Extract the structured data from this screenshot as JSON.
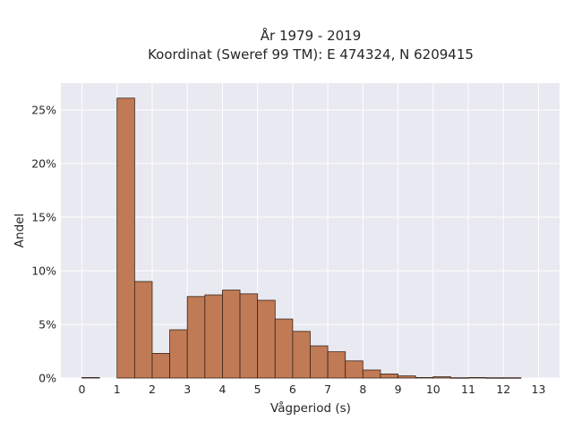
{
  "chart_data": {
    "type": "bar",
    "title": "År 1979 - 2019",
    "subtitle": "Koordinat (Sweref 99 TM): E 474324, N 6209415",
    "xlabel": "Vågperiod (s)",
    "ylabel": "Andel",
    "bin_width": 0.5,
    "bins": [
      {
        "start": 0.0,
        "end": 0.5,
        "value": 0.05
      },
      {
        "start": 1.0,
        "end": 1.5,
        "value": 26.1
      },
      {
        "start": 1.5,
        "end": 2.0,
        "value": 9.0
      },
      {
        "start": 2.0,
        "end": 2.5,
        "value": 2.3
      },
      {
        "start": 2.5,
        "end": 3.0,
        "value": 4.5
      },
      {
        "start": 3.0,
        "end": 3.5,
        "value": 7.6
      },
      {
        "start": 3.5,
        "end": 4.0,
        "value": 7.75
      },
      {
        "start": 4.0,
        "end": 4.5,
        "value": 8.2
      },
      {
        "start": 4.5,
        "end": 5.0,
        "value": 7.85
      },
      {
        "start": 5.0,
        "end": 5.5,
        "value": 7.25
      },
      {
        "start": 5.5,
        "end": 6.0,
        "value": 5.5
      },
      {
        "start": 6.0,
        "end": 6.5,
        "value": 4.35
      },
      {
        "start": 6.5,
        "end": 7.0,
        "value": 3.0
      },
      {
        "start": 7.0,
        "end": 7.5,
        "value": 2.45
      },
      {
        "start": 7.5,
        "end": 8.0,
        "value": 1.6
      },
      {
        "start": 8.0,
        "end": 8.5,
        "value": 0.75
      },
      {
        "start": 8.5,
        "end": 9.0,
        "value": 0.38
      },
      {
        "start": 9.0,
        "end": 9.5,
        "value": 0.2
      },
      {
        "start": 9.5,
        "end": 10.0,
        "value": 0.05
      },
      {
        "start": 10.0,
        "end": 10.5,
        "value": 0.12
      },
      {
        "start": 10.5,
        "end": 11.0,
        "value": 0.03
      },
      {
        "start": 11.0,
        "end": 11.5,
        "value": 0.05
      },
      {
        "start": 11.5,
        "end": 12.0,
        "value": 0.03
      },
      {
        "start": 12.0,
        "end": 12.5,
        "value": 0.03
      }
    ],
    "xticks": [
      "0",
      "1",
      "2",
      "3",
      "4",
      "5",
      "6",
      "7",
      "8",
      "9",
      "10",
      "11",
      "12",
      "13"
    ],
    "yticks": [
      "0%",
      "5%",
      "10%",
      "15%",
      "20%",
      "25%"
    ],
    "xlim": [
      -0.6,
      13.6
    ],
    "ylim": [
      0,
      27.5
    ],
    "grid": true,
    "colors": {
      "bar_fill": "#c07a55",
      "bar_edge": "#3a2418",
      "plot_bg": "#e9e9f1",
      "grid": "#ffffff",
      "text": "#262626"
    }
  }
}
